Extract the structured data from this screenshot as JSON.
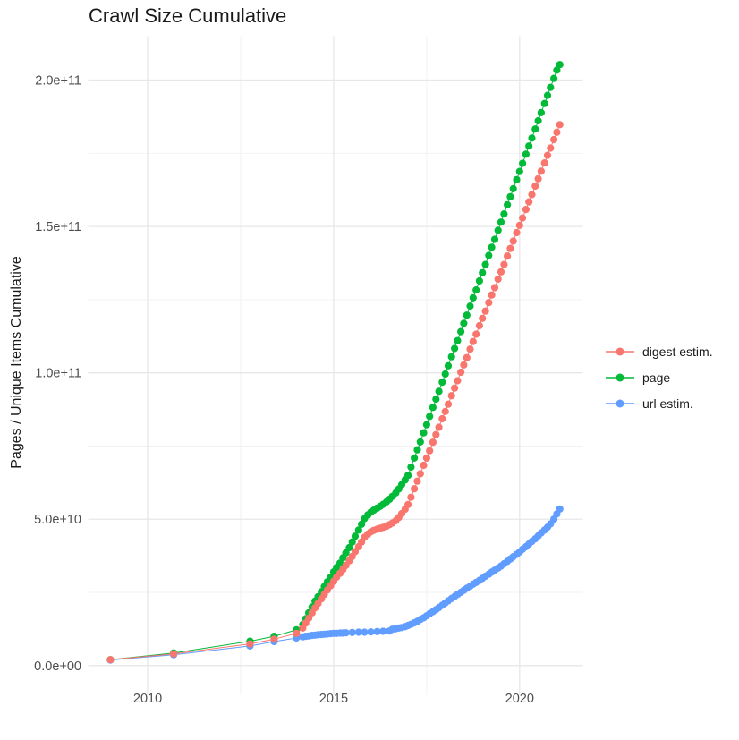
{
  "header": {
    "title": "Crawl Size Cumulative"
  },
  "chart_data": {
    "type": "scatter",
    "title": "Crawl Size Cumulative",
    "xlabel": "",
    "ylabel": "Pages / Unique Items Cumulative",
    "values_unit": "1e9 (billions, cumulative)",
    "grid": true,
    "legend_position": "right",
    "background": "#FFFFFF",
    "grid_major_color": "#E7E7E7",
    "grid_minor_color": "#F2F2F2",
    "tick_label_color": "#4D4D4D",
    "xlim": [
      2008.4,
      2021.7
    ],
    "ylim_e9": [
      -10,
      215
    ],
    "x_ticks": [
      {
        "value": 2010,
        "label": "2010"
      },
      {
        "value": 2015,
        "label": "2015"
      },
      {
        "value": 2020,
        "label": "2020"
      }
    ],
    "x_minor": [
      2012.5,
      2017.5
    ],
    "y_ticks": [
      {
        "value": 0,
        "label": "0.0e+00"
      },
      {
        "value": 50,
        "label": "5.0e+10"
      },
      {
        "value": 100,
        "label": "1.0e+11"
      },
      {
        "value": 150,
        "label": "1.5e+11"
      },
      {
        "value": 200,
        "label": "2.0e+11"
      }
    ],
    "y_minor": [
      25,
      75,
      125,
      175
    ],
    "series": [
      {
        "name": "digest estim.",
        "color": "#F8766D",
        "points": [
          [
            2009.0,
            2.0
          ],
          [
            2010.7,
            4.0
          ],
          [
            2012.75,
            7.4
          ],
          [
            2013.4,
            9.0
          ],
          [
            2014.0,
            11.0
          ],
          [
            2014.17,
            12.8
          ],
          [
            2014.25,
            14.5
          ],
          [
            2014.33,
            16.2
          ],
          [
            2014.42,
            18.0
          ],
          [
            2014.5,
            19.7
          ],
          [
            2014.58,
            21.2
          ],
          [
            2014.67,
            22.8
          ],
          [
            2014.75,
            24.3
          ],
          [
            2014.83,
            25.8
          ],
          [
            2014.92,
            27.3
          ],
          [
            2015.0,
            28.8
          ],
          [
            2015.08,
            30.2
          ],
          [
            2015.17,
            31.5
          ],
          [
            2015.25,
            32.8
          ],
          [
            2015.33,
            34.2
          ],
          [
            2015.42,
            35.8
          ],
          [
            2015.5,
            37.3
          ],
          [
            2015.58,
            38.9
          ],
          [
            2015.67,
            40.6
          ],
          [
            2015.75,
            42.2
          ],
          [
            2015.83,
            43.8
          ],
          [
            2015.92,
            44.9
          ],
          [
            2016.0,
            45.7
          ],
          [
            2016.08,
            46.2
          ],
          [
            2016.17,
            46.6
          ],
          [
            2016.25,
            46.9
          ],
          [
            2016.33,
            47.2
          ],
          [
            2016.42,
            47.6
          ],
          [
            2016.5,
            48.1
          ],
          [
            2016.58,
            48.7
          ],
          [
            2016.67,
            49.5
          ],
          [
            2016.75,
            50.6
          ],
          [
            2016.83,
            51.9
          ],
          [
            2016.92,
            53.4
          ],
          [
            2017.0,
            55.0
          ],
          [
            2017.08,
            57.5
          ],
          [
            2017.17,
            60.4
          ],
          [
            2017.25,
            63.0
          ],
          [
            2017.33,
            65.5
          ],
          [
            2017.42,
            68.4
          ],
          [
            2017.5,
            70.9
          ],
          [
            2017.58,
            73.4
          ],
          [
            2017.67,
            76.3
          ],
          [
            2017.75,
            78.9
          ],
          [
            2017.83,
            81.4
          ],
          [
            2017.92,
            84.3
          ],
          [
            2018.0,
            86.8
          ],
          [
            2018.08,
            89.3
          ],
          [
            2018.17,
            92.2
          ],
          [
            2018.25,
            94.8
          ],
          [
            2018.33,
            97.3
          ],
          [
            2018.42,
            100.2
          ],
          [
            2018.5,
            102.7
          ],
          [
            2018.58,
            105.2
          ],
          [
            2018.67,
            108.1
          ],
          [
            2018.75,
            110.7
          ],
          [
            2018.83,
            113.2
          ],
          [
            2018.92,
            116.1
          ],
          [
            2019.0,
            118.6
          ],
          [
            2019.08,
            121.1
          ],
          [
            2019.17,
            124.0
          ],
          [
            2019.25,
            126.6
          ],
          [
            2019.33,
            129.1
          ],
          [
            2019.42,
            132.0
          ],
          [
            2019.5,
            134.5
          ],
          [
            2019.58,
            137.0
          ],
          [
            2019.67,
            139.9
          ],
          [
            2019.75,
            142.5
          ],
          [
            2019.83,
            145.0
          ],
          [
            2019.92,
            147.9
          ],
          [
            2020.0,
            150.4
          ],
          [
            2020.08,
            152.9
          ],
          [
            2020.17,
            155.8
          ],
          [
            2020.25,
            158.4
          ],
          [
            2020.33,
            160.9
          ],
          [
            2020.42,
            163.8
          ],
          [
            2020.5,
            166.3
          ],
          [
            2020.58,
            168.9
          ],
          [
            2020.67,
            171.7
          ],
          [
            2020.75,
            174.3
          ],
          [
            2020.83,
            176.8
          ],
          [
            2020.92,
            179.7
          ],
          [
            2021.0,
            182.2
          ],
          [
            2021.08,
            184.8
          ]
        ]
      },
      {
        "name": "page",
        "color": "#00BA38",
        "points": [
          [
            2009.0,
            2.0
          ],
          [
            2010.7,
            4.3
          ],
          [
            2012.75,
            8.3
          ],
          [
            2013.4,
            10.0
          ],
          [
            2014.0,
            12.2
          ],
          [
            2014.17,
            14.0
          ],
          [
            2014.25,
            16.0
          ],
          [
            2014.33,
            18.0
          ],
          [
            2014.42,
            20.0
          ],
          [
            2014.5,
            22.0
          ],
          [
            2014.58,
            23.5
          ],
          [
            2014.67,
            25.2
          ],
          [
            2014.75,
            27.0
          ],
          [
            2014.83,
            28.6
          ],
          [
            2014.92,
            30.2
          ],
          [
            2015.0,
            32.0
          ],
          [
            2015.08,
            33.5
          ],
          [
            2015.17,
            35.0
          ],
          [
            2015.25,
            36.8
          ],
          [
            2015.33,
            38.5
          ],
          [
            2015.42,
            40.3
          ],
          [
            2015.5,
            42.2
          ],
          [
            2015.58,
            44.2
          ],
          [
            2015.67,
            46.3
          ],
          [
            2015.75,
            48.3
          ],
          [
            2015.83,
            50.2
          ],
          [
            2015.92,
            51.5
          ],
          [
            2016.0,
            52.4
          ],
          [
            2016.08,
            53.1
          ],
          [
            2016.17,
            53.8
          ],
          [
            2016.25,
            54.4
          ],
          [
            2016.33,
            55.1
          ],
          [
            2016.42,
            55.9
          ],
          [
            2016.5,
            56.8
          ],
          [
            2016.58,
            57.8
          ],
          [
            2016.67,
            59.0
          ],
          [
            2016.75,
            60.3
          ],
          [
            2016.83,
            61.8
          ],
          [
            2016.92,
            63.4
          ],
          [
            2017.0,
            65.0
          ],
          [
            2017.08,
            67.8
          ],
          [
            2017.17,
            70.9
          ],
          [
            2017.25,
            73.7
          ],
          [
            2017.33,
            76.4
          ],
          [
            2017.42,
            79.5
          ],
          [
            2017.5,
            82.3
          ],
          [
            2017.58,
            85.1
          ],
          [
            2017.67,
            88.2
          ],
          [
            2017.75,
            91.0
          ],
          [
            2017.83,
            93.7
          ],
          [
            2017.92,
            96.8
          ],
          [
            2018.0,
            99.6
          ],
          [
            2018.08,
            102.4
          ],
          [
            2018.17,
            105.5
          ],
          [
            2018.25,
            108.3
          ],
          [
            2018.33,
            111.0
          ],
          [
            2018.42,
            114.1
          ],
          [
            2018.5,
            116.9
          ],
          [
            2018.58,
            119.7
          ],
          [
            2018.67,
            122.8
          ],
          [
            2018.75,
            125.6
          ],
          [
            2018.83,
            128.3
          ],
          [
            2018.92,
            131.4
          ],
          [
            2019.0,
            134.2
          ],
          [
            2019.08,
            137.0
          ],
          [
            2019.17,
            140.1
          ],
          [
            2019.25,
            142.9
          ],
          [
            2019.33,
            145.6
          ],
          [
            2019.42,
            148.7
          ],
          [
            2019.5,
            151.5
          ],
          [
            2019.58,
            154.3
          ],
          [
            2019.67,
            157.4
          ],
          [
            2019.75,
            160.2
          ],
          [
            2019.83,
            162.9
          ],
          [
            2019.92,
            166.0
          ],
          [
            2020.0,
            168.8
          ],
          [
            2020.08,
            171.6
          ],
          [
            2020.17,
            174.7
          ],
          [
            2020.25,
            177.5
          ],
          [
            2020.33,
            180.2
          ],
          [
            2020.42,
            183.3
          ],
          [
            2020.5,
            186.1
          ],
          [
            2020.58,
            188.9
          ],
          [
            2020.67,
            192.0
          ],
          [
            2020.75,
            194.8
          ],
          [
            2020.83,
            197.5
          ],
          [
            2020.92,
            200.6
          ],
          [
            2021.0,
            203.4
          ],
          [
            2021.08,
            205.3
          ]
        ]
      },
      {
        "name": "url estim.",
        "color": "#619CFF",
        "points": [
          [
            2009.0,
            1.9
          ],
          [
            2010.7,
            3.7
          ],
          [
            2012.75,
            6.7
          ],
          [
            2013.4,
            8.2
          ],
          [
            2014.0,
            9.4
          ],
          [
            2014.17,
            9.8
          ],
          [
            2014.25,
            10.0
          ],
          [
            2014.33,
            10.1
          ],
          [
            2014.42,
            10.3
          ],
          [
            2014.5,
            10.4
          ],
          [
            2014.58,
            10.5
          ],
          [
            2014.67,
            10.6
          ],
          [
            2014.75,
            10.7
          ],
          [
            2014.83,
            10.8
          ],
          [
            2014.92,
            10.9
          ],
          [
            2015.0,
            11.0
          ],
          [
            2015.08,
            11.0
          ],
          [
            2015.17,
            11.1
          ],
          [
            2015.25,
            11.1
          ],
          [
            2015.33,
            11.2
          ],
          [
            2015.5,
            11.3
          ],
          [
            2015.67,
            11.4
          ],
          [
            2015.83,
            11.4
          ],
          [
            2016.0,
            11.5
          ],
          [
            2016.17,
            11.6
          ],
          [
            2016.33,
            11.7
          ],
          [
            2016.5,
            11.8
          ],
          [
            2016.58,
            12.4
          ],
          [
            2016.67,
            12.6
          ],
          [
            2016.75,
            12.8
          ],
          [
            2016.83,
            13.0
          ],
          [
            2016.92,
            13.3
          ],
          [
            2017.0,
            13.7
          ],
          [
            2017.08,
            14.1
          ],
          [
            2017.17,
            14.6
          ],
          [
            2017.25,
            15.1
          ],
          [
            2017.33,
            15.7
          ],
          [
            2017.42,
            16.3
          ],
          [
            2017.5,
            17.0
          ],
          [
            2017.58,
            17.7
          ],
          [
            2017.67,
            18.4
          ],
          [
            2017.75,
            19.1
          ],
          [
            2017.83,
            19.8
          ],
          [
            2017.92,
            20.6
          ],
          [
            2018.0,
            21.4
          ],
          [
            2018.08,
            22.1
          ],
          [
            2018.17,
            22.9
          ],
          [
            2018.25,
            23.6
          ],
          [
            2018.33,
            24.3
          ],
          [
            2018.42,
            25.0
          ],
          [
            2018.5,
            25.7
          ],
          [
            2018.58,
            26.4
          ],
          [
            2018.67,
            27.1
          ],
          [
            2018.75,
            27.8
          ],
          [
            2018.83,
            28.4
          ],
          [
            2018.92,
            29.1
          ],
          [
            2019.0,
            29.8
          ],
          [
            2019.08,
            30.5
          ],
          [
            2019.17,
            31.2
          ],
          [
            2019.25,
            31.9
          ],
          [
            2019.33,
            32.6
          ],
          [
            2019.42,
            33.3
          ],
          [
            2019.5,
            34.0
          ],
          [
            2019.58,
            34.8
          ],
          [
            2019.67,
            35.6
          ],
          [
            2019.75,
            36.4
          ],
          [
            2019.83,
            37.2
          ],
          [
            2019.92,
            38.0
          ],
          [
            2020.0,
            38.8
          ],
          [
            2020.08,
            39.7
          ],
          [
            2020.17,
            40.6
          ],
          [
            2020.25,
            41.5
          ],
          [
            2020.33,
            42.4
          ],
          [
            2020.42,
            43.3
          ],
          [
            2020.5,
            44.3
          ],
          [
            2020.58,
            45.3
          ],
          [
            2020.67,
            46.3
          ],
          [
            2020.75,
            47.3
          ],
          [
            2020.83,
            48.4
          ],
          [
            2020.92,
            50.0
          ],
          [
            2021.0,
            51.8
          ],
          [
            2021.08,
            53.5
          ]
        ]
      }
    ]
  }
}
